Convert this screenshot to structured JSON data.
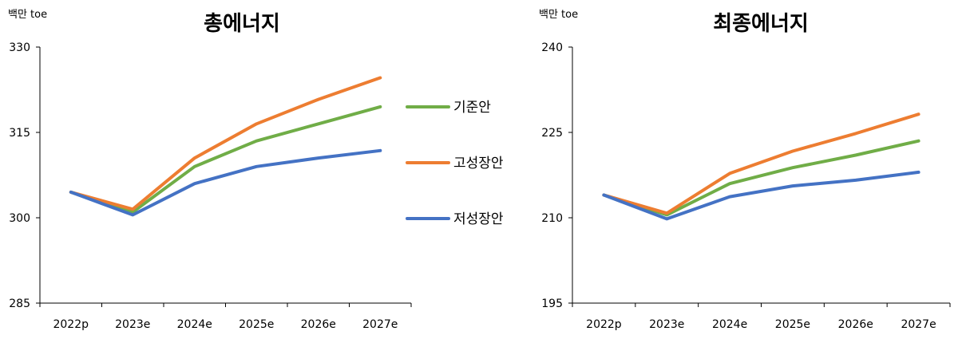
{
  "chart_data": [
    {
      "type": "line",
      "title": "총에너지",
      "unit_label": "백만 toe",
      "categories": [
        "2022p",
        "2023e",
        "2024e",
        "2025e",
        "2026e",
        "2027e"
      ],
      "ylim": [
        285,
        330
      ],
      "yticks": [
        "285",
        "300",
        "315",
        "330"
      ],
      "grid": false,
      "series": [
        {
          "name": "기준안",
          "color": "#70ad47",
          "values": [
            304.5,
            301.0,
            309.0,
            313.5,
            316.5,
            319.5
          ]
        },
        {
          "name": "고성장안",
          "color": "#ed7d31",
          "values": [
            304.5,
            301.5,
            310.5,
            316.5,
            320.8,
            324.6
          ]
        },
        {
          "name": "저성장안",
          "color": "#4472c4",
          "values": [
            304.5,
            300.5,
            306.0,
            309.0,
            310.5,
            311.8
          ]
        }
      ]
    },
    {
      "type": "line",
      "title": "최종에너지",
      "unit_label": "백만 toe",
      "categories": [
        "2022p",
        "2023e",
        "2024e",
        "2025e",
        "2026e",
        "2027e"
      ],
      "ylim": [
        195,
        240
      ],
      "yticks": [
        "195",
        "210",
        "225",
        "240"
      ],
      "grid": false,
      "series": [
        {
          "name": "기준안",
          "color": "#70ad47",
          "values": [
            214.0,
            210.5,
            216.0,
            218.8,
            221.0,
            223.5
          ]
        },
        {
          "name": "고성장안",
          "color": "#ed7d31",
          "values": [
            214.0,
            210.8,
            217.8,
            221.7,
            224.8,
            228.2
          ]
        },
        {
          "name": "저성장안",
          "color": "#4472c4",
          "values": [
            214.0,
            209.8,
            213.7,
            215.6,
            216.6,
            218.0
          ]
        }
      ]
    }
  ],
  "legend": {
    "placement": "between charts",
    "items": [
      "기준안",
      "고성장안",
      "저성장안"
    ]
  }
}
